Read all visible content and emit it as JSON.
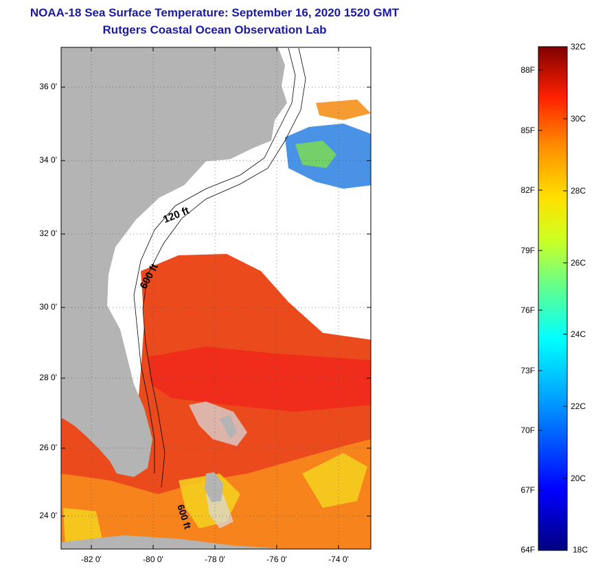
{
  "title": {
    "line1": "NOAA-18 Sea Surface Temperature:  September 16, 2020 1520 GMT",
    "line2": "Rutgers Coastal Ocean Observation Lab"
  },
  "map": {
    "lat_labels": [
      "36 0'",
      "34 0'",
      "32 0'",
      "30 0'",
      "28 0'",
      "26 0'",
      "24 0'"
    ],
    "lon_labels": [
      "-82 0'",
      "-80 0'",
      "-78 0'",
      "-76 0'",
      "-74 0'"
    ],
    "contour_labels": [
      "120 ft",
      "600 ft",
      "600 ft"
    ],
    "colors": {
      "land": "#b4b4b4",
      "cloud": "#ffffff",
      "warm": "#e8401a",
      "cool": "#1f6fd6"
    }
  },
  "colorbar": {
    "celsius": [
      "32C",
      "30C",
      "28C",
      "26C",
      "24C",
      "22C",
      "20C",
      "18C"
    ],
    "fahrenheit": [
      "88F",
      "85F",
      "82F",
      "79F",
      "76F",
      "73F",
      "70F",
      "67F",
      "64F"
    ],
    "range_c": [
      18,
      32
    ]
  }
}
